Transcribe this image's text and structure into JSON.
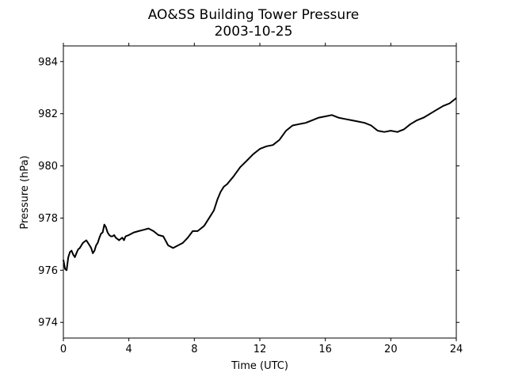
{
  "chart_data": {
    "type": "line",
    "title": "AO&SS Building Tower Pressure",
    "subtitle": "2003-10-25",
    "xlabel": "Time (UTC)",
    "ylabel": "Pressure (hPa)",
    "xlim": [
      0,
      24
    ],
    "ylim": [
      973.4,
      984.6
    ],
    "xticks": [
      0,
      4,
      8,
      12,
      16,
      20,
      24
    ],
    "yticks": [
      974,
      976,
      978,
      980,
      982,
      984
    ],
    "grid": false,
    "line_color": "#000000",
    "series": [
      {
        "x": [
          0.0,
          0.1,
          0.2,
          0.3,
          0.4,
          0.5,
          0.6,
          0.7,
          0.8,
          0.9,
          1.0,
          1.1,
          1.2,
          1.3,
          1.4,
          1.5,
          1.6,
          1.7,
          1.8,
          1.9,
          2.0,
          2.1,
          2.2,
          2.3,
          2.4,
          2.5,
          2.6,
          2.7,
          2.8,
          2.9,
          3.0,
          3.1,
          3.2,
          3.3,
          3.4,
          3.5,
          3.6,
          3.7,
          3.8,
          4.0,
          4.3,
          4.6,
          4.9,
          5.2,
          5.5,
          5.8,
          6.1,
          6.4,
          6.7,
          7.0,
          7.3,
          7.6,
          7.9,
          8.2,
          8.4,
          8.6,
          8.8,
          9.0,
          9.2,
          9.4,
          9.6,
          9.8,
          10.0,
          10.4,
          10.8,
          11.2,
          11.6,
          12.0,
          12.4,
          12.8,
          13.2,
          13.6,
          14.0,
          14.4,
          14.8,
          15.2,
          15.6,
          16.0,
          16.4,
          16.8,
          17.2,
          17.6,
          18.0,
          18.4,
          18.8,
          19.2,
          19.6,
          20.0,
          20.4,
          20.8,
          21.2,
          21.6,
          22.0,
          22.4,
          22.8,
          23.2,
          23.6,
          24.0
        ],
        "values": [
          976.4,
          976.05,
          976.0,
          976.5,
          976.7,
          976.75,
          976.6,
          976.5,
          976.65,
          976.8,
          976.85,
          976.95,
          977.05,
          977.1,
          977.15,
          977.05,
          976.95,
          976.85,
          976.65,
          976.75,
          976.95,
          977.05,
          977.25,
          977.4,
          977.45,
          977.75,
          977.65,
          977.45,
          977.35,
          977.3,
          977.3,
          977.35,
          977.25,
          977.2,
          977.15,
          977.2,
          977.25,
          977.15,
          977.3,
          977.35,
          977.45,
          977.5,
          977.55,
          977.6,
          977.5,
          977.35,
          977.3,
          976.95,
          976.85,
          976.95,
          977.05,
          977.25,
          977.5,
          977.5,
          977.6,
          977.7,
          977.9,
          978.1,
          978.3,
          978.7,
          979.0,
          979.2,
          979.3,
          979.6,
          979.95,
          980.2,
          980.45,
          980.65,
          980.75,
          980.8,
          981.0,
          981.35,
          981.55,
          981.6,
          981.65,
          981.75,
          981.85,
          981.9,
          981.95,
          981.85,
          981.8,
          981.75,
          981.7,
          981.65,
          981.55,
          981.35,
          981.3,
          981.35,
          981.3,
          981.4,
          981.6,
          981.75,
          981.85,
          982.0,
          982.15,
          982.3,
          982.4,
          982.6
        ]
      }
    ]
  }
}
